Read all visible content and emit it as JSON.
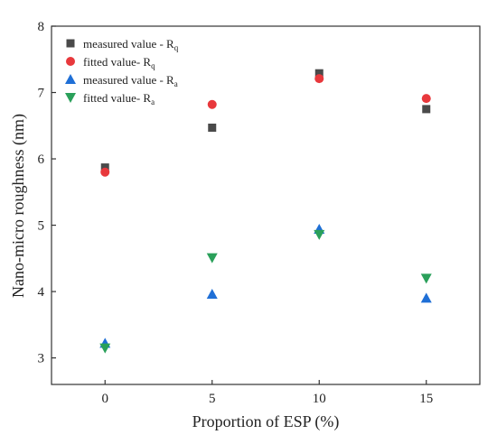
{
  "chart_data": {
    "type": "scatter",
    "xlabel": "Proportion of ESP (%)",
    "ylabel": "Nano-micro roughness (nm)",
    "xlim": [
      -2.5,
      17.5
    ],
    "ylim": [
      2.6,
      8.0
    ],
    "xticks": [
      0,
      5,
      10,
      15
    ],
    "yticks": [
      3,
      4,
      5,
      6,
      7,
      8
    ],
    "xtick_labels": [
      "0",
      "5",
      "10",
      "15"
    ],
    "ytick_labels": [
      "3",
      "4",
      "5",
      "6",
      "7",
      "8"
    ],
    "legend_position": "top-left",
    "grid": false,
    "series": [
      {
        "name": "measured value - R",
        "sub": "q",
        "marker": "square",
        "color": "#4a4a4a",
        "x": [
          0,
          5,
          10,
          15
        ],
        "values": [
          5.87,
          6.47,
          7.29,
          6.75
        ]
      },
      {
        "name": "fitted value- R",
        "sub": "q",
        "marker": "circle",
        "color": "#e8383c",
        "x": [
          0,
          5,
          10,
          15
        ],
        "values": [
          5.8,
          6.82,
          7.21,
          6.91
        ]
      },
      {
        "name": "measured value - R",
        "sub": "a",
        "marker": "triangle-up",
        "color": "#1f6fd6",
        "x": [
          0,
          5,
          10,
          15
        ],
        "values": [
          3.22,
          3.96,
          4.94,
          3.9
        ]
      },
      {
        "name": "fitted value- R",
        "sub": "a",
        "marker": "triangle-down",
        "color": "#2aa05a",
        "x": [
          0,
          5,
          10,
          15
        ],
        "values": [
          3.15,
          4.51,
          4.86,
          4.2
        ]
      }
    ]
  }
}
